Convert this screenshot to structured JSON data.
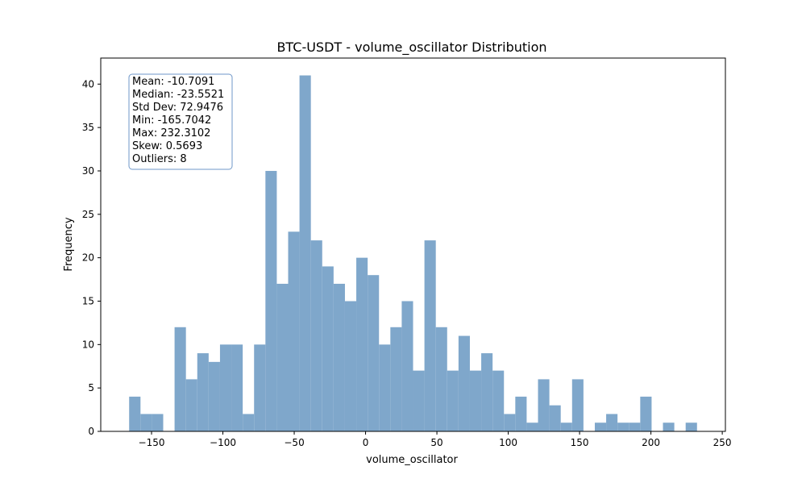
{
  "chart_data": {
    "type": "bar",
    "title": "BTC-USDT - volume_oscillator Distribution",
    "xlabel": "volume_oscillator",
    "ylabel": "Frequency",
    "xlim": [
      -185.6,
      252.2
    ],
    "ylim": [
      0,
      43
    ],
    "x_ticks": [
      -150,
      -100,
      -50,
      0,
      50,
      100,
      150,
      200,
      250
    ],
    "x_tick_labels": [
      "−150",
      "−100",
      "−50",
      "0",
      "50",
      "100",
      "150",
      "200",
      "250"
    ],
    "y_ticks": [
      0,
      5,
      10,
      15,
      20,
      25,
      30,
      35,
      40
    ],
    "y_tick_labels": [
      "0",
      "5",
      "10",
      "15",
      "20",
      "25",
      "30",
      "35",
      "40"
    ],
    "bin_start": -165.7042,
    "bin_width": 7.9603,
    "values": [
      4,
      2,
      2,
      0,
      12,
      6,
      9,
      8,
      10,
      10,
      2,
      10,
      30,
      17,
      23,
      41,
      22,
      19,
      17,
      15,
      20,
      18,
      10,
      12,
      15,
      7,
      22,
      12,
      7,
      11,
      7,
      9,
      7,
      2,
      4,
      1,
      6,
      3,
      1,
      6,
      0,
      1,
      2,
      1,
      1,
      4,
      0,
      1,
      0,
      1
    ],
    "bar_color": "#7fa7cb",
    "grid": false,
    "legend": "none",
    "stats_box": {
      "position": "top-left",
      "border_color": "#6f97c8",
      "lines": [
        "Mean: -10.7091",
        "Median: -23.5521",
        "Std Dev: 72.9476",
        "Min: -165.7042",
        "Max: 232.3102",
        "Skew: 0.5693",
        "Outliers: 8"
      ]
    }
  }
}
